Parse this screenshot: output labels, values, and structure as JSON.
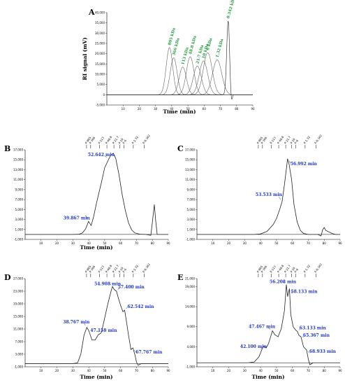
{
  "chart_data": [
    {
      "panel": "A",
      "type": "line",
      "xlabel": "Time (min)",
      "ylabel": "RI signal (mV)",
      "xlim": [
        0,
        90
      ],
      "ylim": [
        -5000,
        40000
      ],
      "x_ticks": [
        10,
        20,
        30,
        40,
        50,
        60,
        70,
        80,
        90
      ],
      "y_ticks": [
        -5000,
        0,
        5000,
        10000,
        15000,
        20000,
        25000,
        30000,
        35000,
        40000
      ],
      "series": [
        {
          "name": "805 kDa",
          "peak_x": 38.6,
          "peak_y": 23000
        },
        {
          "name": "366 kDa",
          "peak_x": 41.2,
          "peak_y": 18000
        },
        {
          "name": "113 kDa",
          "peak_x": 46.8,
          "peak_y": 13500
        },
        {
          "name": "48.8 kDa",
          "peak_x": 51.4,
          "peak_y": 18500
        },
        {
          "name": "21.7 kDa",
          "peak_x": 55.8,
          "peak_y": 14000
        },
        {
          "name": "10 kDa",
          "peak_x": 59.6,
          "peak_y": 16500
        },
        {
          "name": "6 kDa",
          "peak_x": 62.2,
          "peak_y": 20500
        },
        {
          "name": "1.32 kDa",
          "peak_x": 68.0,
          "peak_y": 17000
        },
        {
          "name": "0.342 kDa",
          "peak_x": 74.8,
          "peak_y": 36000
        }
      ]
    },
    {
      "panel": "B",
      "type": "line",
      "xlabel": "Time (min)",
      "xlim": [
        0,
        90
      ],
      "ylim": [
        -1000,
        17000
      ],
      "x_ticks": [
        10,
        20,
        30,
        40,
        50,
        60,
        70,
        80,
        90
      ],
      "y_ticks": [
        -1000,
        1000,
        3000,
        5000,
        7000,
        9000,
        11000,
        13000,
        15000,
        17000
      ],
      "markers": [
        "P-805",
        "P-366",
        "P-113",
        "P-48.8",
        "P-21.7",
        "P-10",
        "P-6",
        "P-1.32",
        "P-0.342"
      ],
      "annotations": [
        {
          "label": "39.867 min",
          "x": 39.867,
          "y": 2600
        },
        {
          "label": "52.642 min",
          "x": 52.642,
          "y": 15200
        }
      ],
      "points": [
        [
          0,
          0
        ],
        [
          30,
          0
        ],
        [
          34,
          50
        ],
        [
          36,
          300
        ],
        [
          38,
          1100
        ],
        [
          39.867,
          2600
        ],
        [
          41.5,
          1800
        ],
        [
          43,
          3500
        ],
        [
          45,
          6500
        ],
        [
          48,
          10500
        ],
        [
          50,
          13400
        ],
        [
          52.642,
          15200
        ],
        [
          54,
          16000
        ],
        [
          55.5,
          16300
        ],
        [
          57,
          15200
        ],
        [
          59,
          12000
        ],
        [
          61,
          8000
        ],
        [
          63,
          4800
        ],
        [
          65,
          2300
        ],
        [
          67,
          900
        ],
        [
          69,
          300
        ],
        [
          72,
          50
        ],
        [
          76,
          0
        ],
        [
          79,
          -200
        ],
        [
          80,
          2500
        ],
        [
          81.2,
          6000
        ],
        [
          82,
          3000
        ],
        [
          83,
          0
        ],
        [
          90,
          0
        ]
      ]
    },
    {
      "panel": "C",
      "type": "line",
      "xlabel": "",
      "xlim": [
        0,
        90
      ],
      "ylim": [
        -1000,
        17000
      ],
      "x_ticks": [
        10,
        20,
        30,
        40,
        50,
        60,
        70,
        80,
        90
      ],
      "y_ticks": [
        -1000,
        1000,
        3000,
        5000,
        7000,
        9000,
        11000,
        13000,
        15000,
        17000
      ],
      "markers": [
        "P-805",
        "P-366",
        "P-113",
        "P-48.8",
        "P-21.7",
        "P-10",
        "P-6",
        "P-1.32",
        "P-0.342"
      ],
      "annotations": [
        {
          "label": "53.533 min",
          "x": 53.533,
          "y": 6600
        },
        {
          "label": "56.992 min",
          "x": 56.992,
          "y": 15200
        }
      ],
      "points": [
        [
          0,
          0
        ],
        [
          36,
          0
        ],
        [
          40,
          100
        ],
        [
          44,
          600
        ],
        [
          48,
          2000
        ],
        [
          50,
          3200
        ],
        [
          52,
          5000
        ],
        [
          53.533,
          6600
        ],
        [
          55,
          10000
        ],
        [
          56.992,
          15200
        ],
        [
          58,
          14000
        ],
        [
          59.5,
          11000
        ],
        [
          61,
          6000
        ],
        [
          63,
          2500
        ],
        [
          65,
          800
        ],
        [
          67,
          200
        ],
        [
          70,
          0
        ],
        [
          76,
          0
        ],
        [
          78,
          -300
        ],
        [
          79,
          900
        ],
        [
          80,
          1400
        ],
        [
          81,
          800
        ],
        [
          83,
          500
        ],
        [
          85,
          200
        ],
        [
          87,
          0
        ],
        [
          90,
          0
        ]
      ]
    },
    {
      "panel": "D",
      "type": "line",
      "xlabel": "Time (min)",
      "xlim": [
        0,
        90
      ],
      "ylim": [
        -1000,
        27000
      ],
      "x_ticks": [
        10,
        20,
        30,
        40,
        50,
        60,
        70,
        80,
        90
      ],
      "y_ticks": [
        -1000,
        3000,
        7000,
        11000,
        15000,
        19000,
        23000,
        27000
      ],
      "markers": [
        "P-805",
        "P-366",
        "P-113",
        "P-48.8",
        "P-21.7",
        "P-10",
        "P-6",
        "P-1.32",
        "P-0.342"
      ],
      "annotations": [
        {
          "label": "38.767 min",
          "x": 38.767,
          "y": 11500
        },
        {
          "label": "47.158 min",
          "x": 47.158,
          "y": 9500
        },
        {
          "label": "54.908 min",
          "x": 54.908,
          "y": 24500
        },
        {
          "label": "57.400 min",
          "x": 57.4,
          "y": 23000
        },
        {
          "label": "62.542 min",
          "x": 62.542,
          "y": 17000
        },
        {
          "label": "67.767 min",
          "x": 67.767,
          "y": 5000
        }
      ],
      "points": [
        [
          0,
          0
        ],
        [
          30,
          0
        ],
        [
          33,
          300
        ],
        [
          35,
          3000
        ],
        [
          37,
          9000
        ],
        [
          38.767,
          11500
        ],
        [
          40,
          10500
        ],
        [
          42,
          7500
        ],
        [
          44,
          7500
        ],
        [
          46,
          9200
        ],
        [
          47.158,
          9500
        ],
        [
          48,
          10000
        ],
        [
          50,
          14500
        ],
        [
          52,
          19000
        ],
        [
          54,
          23000
        ],
        [
          54.908,
          24500
        ],
        [
          56,
          23500
        ],
        [
          57.4,
          23000
        ],
        [
          58.5,
          21000
        ],
        [
          60,
          18500
        ],
        [
          61.5,
          16500
        ],
        [
          62.542,
          17000
        ],
        [
          63.5,
          14000
        ],
        [
          65,
          9000
        ],
        [
          66.5,
          4500
        ],
        [
          67.767,
          5000
        ],
        [
          69,
          2800
        ],
        [
          70,
          500
        ],
        [
          71,
          -500
        ],
        [
          73,
          0
        ],
        [
          90,
          0
        ]
      ]
    },
    {
      "panel": "E",
      "type": "line",
      "xlabel": "Time (min)",
      "xlim": [
        0,
        90
      ],
      "ylim": [
        -1000,
        21000
      ],
      "x_ticks": [
        10,
        20,
        30,
        40,
        50,
        60,
        70,
        80,
        90
      ],
      "y_ticks": [
        -1000,
        4000,
        9000,
        14000,
        19000,
        21000
      ],
      "markers": [
        "P-805",
        "P-366",
        "P-113",
        "P-48.8",
        "P-21.7",
        "P-10",
        "P-6",
        "P-1.32",
        "P-0.342"
      ],
      "annotations": [
        {
          "label": "42.100 min",
          "x": 42.1,
          "y": 4200
        },
        {
          "label": "47.467 min",
          "x": 47.467,
          "y": 8000
        },
        {
          "label": "56.208 min",
          "x": 56.208,
          "y": 19500
        },
        {
          "label": "58.133 min",
          "x": 58.133,
          "y": 18500
        },
        {
          "label": "63.133 min",
          "x": 63.133,
          "y": 7800
        },
        {
          "label": "65.367 min",
          "x": 65.367,
          "y": 6500
        },
        {
          "label": "68.933 min",
          "x": 68.933,
          "y": 3200
        }
      ],
      "points": [
        [
          0,
          0
        ],
        [
          32,
          0
        ],
        [
          36,
          200
        ],
        [
          39,
          1500
        ],
        [
          41,
          3500
        ],
        [
          42.1,
          4200
        ],
        [
          43.5,
          3700
        ],
        [
          45,
          4800
        ],
        [
          47.467,
          8000
        ],
        [
          49,
          7000
        ],
        [
          51,
          6500
        ],
        [
          53,
          8500
        ],
        [
          55,
          13000
        ],
        [
          56.208,
          19500
        ],
        [
          57,
          16500
        ],
        [
          58.133,
          18500
        ],
        [
          59,
          12000
        ],
        [
          60.5,
          9000
        ],
        [
          62,
          8200
        ],
        [
          63.133,
          7800
        ],
        [
          64.2,
          6800
        ],
        [
          65.367,
          6500
        ],
        [
          67,
          4000
        ],
        [
          68.933,
          3200
        ],
        [
          70,
          900
        ],
        [
          71,
          -500
        ],
        [
          73,
          0
        ],
        [
          90,
          0
        ]
      ]
    }
  ]
}
